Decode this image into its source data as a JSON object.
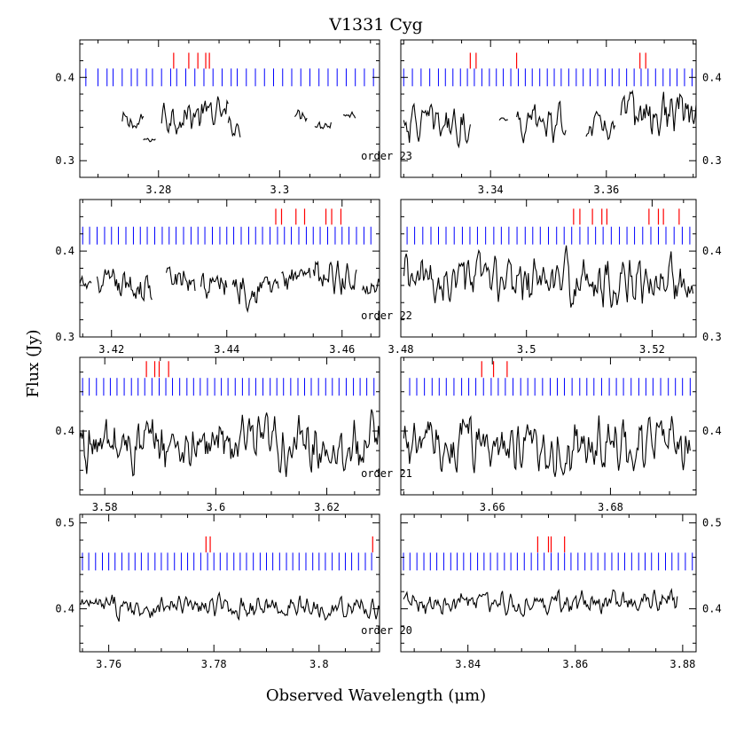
{
  "chart_data": {
    "type": "line",
    "title": "V1331 Cyg",
    "xlabel": "Observed Wavelength (μm)",
    "ylabel": "Flux (Jy)",
    "grid": false,
    "colors": {
      "spectrum": "#000000",
      "blue_marks": "#0000ff",
      "red_marks": "#ff0000"
    },
    "orders": [
      {
        "label": "order 23",
        "ylim": [
          0.28,
          0.445
        ],
        "yticks": [
          0.3,
          0.4
        ],
        "tick_labels_y": [
          "0.3",
          "0.4"
        ],
        "blue_y": 0.4,
        "red_y": 0.42,
        "panels": [
          {
            "xlim": [
              3.267,
              3.3165
            ],
            "xticks": [
              3.28,
              3.3
            ],
            "tick_labels_x": [
              "3.28",
              "3.3"
            ],
            "blue_marks": [
              3.268,
              3.27,
              3.2715,
              3.2725,
              3.274,
              3.2755,
              3.2765,
              3.278,
              3.279,
              3.2805,
              3.282,
              3.283,
              3.2845,
              3.286,
              3.2875,
              3.289,
              3.2905,
              3.292,
              3.293,
              3.2945,
              3.296,
              3.2975,
              3.299,
              3.3005,
              3.302,
              3.3035,
              3.305,
              3.3065,
              3.308,
              3.3095,
              3.311,
              3.3125,
              3.314,
              3.3155
            ],
            "red_marks": [
              3.2825,
              3.285,
              3.2865,
              3.2878,
              3.2884
            ],
            "segments": [
              {
                "x0": 3.274,
                "x1": 3.2775,
                "base": 0.345,
                "amp": 0.012
              },
              {
                "x0": 3.2775,
                "x1": 3.2795,
                "base": 0.325,
                "amp": 0.003
              },
              {
                "x0": 3.2805,
                "x1": 3.2915,
                "base": 0.355,
                "amp": 0.02
              },
              {
                "x0": 3.2915,
                "x1": 3.2935,
                "base": 0.34,
                "amp": 0.01
              },
              {
                "x0": 3.3025,
                "x1": 3.3045,
                "base": 0.355,
                "amp": 0.008
              },
              {
                "x0": 3.3058,
                "x1": 3.3085,
                "base": 0.345,
                "amp": 0.008
              },
              {
                "x0": 3.3105,
                "x1": 3.3125,
                "base": 0.355,
                "amp": 0.004
              }
            ]
          },
          {
            "xlim": [
              3.3245,
              3.3755
            ],
            "xticks": [
              3.34,
              3.36
            ],
            "tick_labels_x": [
              "3.34",
              "3.36"
            ],
            "blue_marks": [
              3.325,
              3.3265,
              3.328,
              3.3295,
              3.331,
              3.3322,
              3.3335,
              3.3348,
              3.336,
              3.3372,
              3.3385,
              3.3398,
              3.341,
              3.3422,
              3.3435,
              3.3448,
              3.346,
              3.3472,
              3.3485,
              3.3498,
              3.351,
              3.3522,
              3.3535,
              3.3548,
              3.356,
              3.3572,
              3.3585,
              3.3598,
              3.361,
              3.3622,
              3.3635,
              3.3648,
              3.366,
              3.3672,
              3.3685,
              3.3698,
              3.371,
              3.3722,
              3.3735,
              3.3748
            ],
            "red_marks": [
              3.3365,
              3.3375,
              3.3445,
              3.3658,
              3.3668
            ],
            "segments": [
              {
                "x0": 3.325,
                "x1": 3.3365,
                "base": 0.345,
                "amp": 0.02
              },
              {
                "x0": 3.3415,
                "x1": 3.343,
                "base": 0.35,
                "amp": 0.002
              },
              {
                "x0": 3.3445,
                "x1": 3.353,
                "base": 0.345,
                "amp": 0.02
              },
              {
                "x0": 3.3565,
                "x1": 3.3615,
                "base": 0.34,
                "amp": 0.016
              },
              {
                "x0": 3.3625,
                "x1": 3.3755,
                "base": 0.355,
                "amp": 0.024
              }
            ]
          }
        ]
      },
      {
        "label": "order 22",
        "ylim": [
          0.3,
          0.46
        ],
        "yticks": [
          0.3,
          0.4
        ],
        "tick_labels_y": [
          "0.3",
          "0.4"
        ],
        "blue_y": 0.418,
        "red_y": 0.44,
        "panels": [
          {
            "xlim": [
              3.4145,
              3.4665
            ],
            "xticks": [
              3.42,
              3.44,
              3.46
            ],
            "tick_labels_x": [
              "3.42",
              "3.44",
              "3.46"
            ],
            "blue_marks": [
              3.415,
              3.4162,
              3.4175,
              3.4188,
              3.42,
              3.4212,
              3.4225,
              3.4238,
              3.425,
              3.4262,
              3.4275,
              3.4288,
              3.43,
              3.4312,
              3.4325,
              3.4338,
              3.435,
              3.4362,
              3.4375,
              3.4388,
              3.44,
              3.4412,
              3.4425,
              3.4438,
              3.445,
              3.4462,
              3.4475,
              3.4488,
              3.45,
              3.4512,
              3.4525,
              3.4538,
              3.455,
              3.4562,
              3.4575,
              3.4588,
              3.46,
              3.4612,
              3.4625,
              3.4638,
              3.465
            ],
            "red_marks": [
              3.4485,
              3.4495,
              3.452,
              3.4535,
              3.4572,
              3.4582,
              3.4598
            ],
            "segments": [
              {
                "x0": 3.4145,
                "x1": 3.4165,
                "base": 0.36,
                "amp": 0.008
              },
              {
                "x0": 3.4175,
                "x1": 3.427,
                "base": 0.358,
                "amp": 0.018
              },
              {
                "x0": 3.4295,
                "x1": 3.4345,
                "base": 0.365,
                "amp": 0.016
              },
              {
                "x0": 3.4355,
                "x1": 3.44,
                "base": 0.36,
                "amp": 0.018
              },
              {
                "x0": 3.441,
                "x1": 3.449,
                "base": 0.36,
                "amp": 0.02
              },
              {
                "x0": 3.4495,
                "x1": 3.4545,
                "base": 0.365,
                "amp": 0.016
              },
              {
                "x0": 3.455,
                "x1": 3.4625,
                "base": 0.37,
                "amp": 0.022
              },
              {
                "x0": 3.4635,
                "x1": 3.4665,
                "base": 0.36,
                "amp": 0.01
              }
            ]
          },
          {
            "xlim": [
              3.48,
              3.527
            ],
            "xticks": [
              3.48,
              3.5,
              3.52
            ],
            "tick_labels_x": [
              "3.48",
              "3.5",
              "3.52"
            ],
            "blue_marks": [
              3.481,
              3.4822,
              3.4835,
              3.4848,
              3.486,
              3.4872,
              3.4885,
              3.4898,
              3.491,
              3.4922,
              3.4935,
              3.4948,
              3.496,
              3.4972,
              3.4985,
              3.4998,
              3.501,
              3.5022,
              3.5035,
              3.5048,
              3.506,
              3.5072,
              3.5085,
              3.5098,
              3.511,
              3.5122,
              3.5135,
              3.5148,
              3.516,
              3.5172,
              3.5185,
              3.5198,
              3.521,
              3.5222,
              3.5235,
              3.5248,
              3.526
            ],
            "red_marks": [
              3.5075,
              3.5085,
              3.5105,
              3.512,
              3.5128,
              3.5195,
              3.521,
              3.5218,
              3.5243
            ],
            "segments": [
              {
                "x0": 3.4805,
                "x1": 3.5265,
                "base": 0.365,
                "amp": 0.025
              }
            ]
          }
        ]
      },
      {
        "label": "order 21",
        "ylim": [
          0.335,
          0.475
        ],
        "yticks": [
          0.4
        ],
        "tick_labels_y": [
          "0.4"
        ],
        "blue_y": 0.445,
        "red_y": 0.463,
        "panels": [
          {
            "xlim": [
              3.5755,
              3.6295
            ],
            "xticks": [
              3.58,
              3.6,
              3.62
            ],
            "tick_labels_x": [
              "3.58",
              "3.6",
              "3.62"
            ],
            "blue_marks": [
              3.576,
              3.5772,
              3.5785,
              3.5798,
              3.581,
              3.5822,
              3.5835,
              3.5848,
              3.586,
              3.5872,
              3.5885,
              3.5898,
              3.591,
              3.5922,
              3.5935,
              3.5948,
              3.596,
              3.5972,
              3.5985,
              3.5998,
              3.601,
              3.6022,
              3.6035,
              3.6048,
              3.606,
              3.6072,
              3.6085,
              3.6098,
              3.611,
              3.6122,
              3.6135,
              3.6148,
              3.616,
              3.6172,
              3.6185,
              3.6198,
              3.621,
              3.6222,
              3.6235,
              3.6248,
              3.626,
              3.6272,
              3.6285
            ],
            "red_marks": [
              3.5875,
              3.589,
              3.5898,
              3.5915
            ],
            "segments": [
              {
                "x0": 3.5755,
                "x1": 3.6295,
                "base": 0.385,
                "amp": 0.025
              }
            ]
          },
          {
            "xlim": [
              3.6445,
              3.6945
            ],
            "xticks": [
              3.66,
              3.68
            ],
            "tick_labels_x": [
              "3.66",
              "3.68"
            ],
            "blue_marks": [
              3.646,
              3.6472,
              3.6485,
              3.6498,
              3.651,
              3.6522,
              3.6535,
              3.6548,
              3.656,
              3.6572,
              3.6585,
              3.6598,
              3.661,
              3.6622,
              3.6635,
              3.6648,
              3.666,
              3.6672,
              3.6685,
              3.6698,
              3.671,
              3.6722,
              3.6735,
              3.6748,
              3.676,
              3.6772,
              3.6785,
              3.6798,
              3.681,
              3.6822,
              3.6835,
              3.6848,
              3.686,
              3.6872,
              3.6885,
              3.6898,
              3.691,
              3.6922,
              3.6935
            ],
            "red_marks": [
              3.6582,
              3.6602,
              3.6625
            ],
            "segments": [
              {
                "x0": 3.645,
                "x1": 3.6935,
                "base": 0.385,
                "amp": 0.025
              }
            ]
          }
        ]
      },
      {
        "label": "order 20",
        "ylim": [
          0.35,
          0.51
        ],
        "yticks": [
          0.4,
          0.5
        ],
        "tick_labels_y": [
          "0.4",
          "0.5"
        ],
        "blue_y": 0.455,
        "red_y": 0.475,
        "panels": [
          {
            "xlim": [
              3.7545,
              3.8115
            ],
            "xticks": [
              3.76,
              3.78,
              3.8
            ],
            "tick_labels_x": [
              "3.76",
              "3.78",
              "3.8"
            ],
            "blue_marks": [
              3.755,
              3.7562,
              3.7575,
              3.7588,
              3.76,
              3.7612,
              3.7625,
              3.7638,
              3.765,
              3.7662,
              3.7675,
              3.7688,
              3.77,
              3.7712,
              3.7725,
              3.7738,
              3.775,
              3.7762,
              3.7775,
              3.7788,
              3.78,
              3.7812,
              3.7825,
              3.7838,
              3.785,
              3.7862,
              3.7875,
              3.7888,
              3.79,
              3.7912,
              3.7925,
              3.7938,
              3.795,
              3.7962,
              3.7975,
              3.7988,
              3.8,
              3.8012,
              3.8025,
              3.8038,
              3.805,
              3.8062,
              3.8075,
              3.8088,
              3.81
            ],
            "red_marks": [
              3.7785,
              3.7793,
              3.8102
            ],
            "segments": [
              {
                "x0": 3.7545,
                "x1": 3.8115,
                "base": 0.402,
                "amp": 0.012
              }
            ]
          },
          {
            "xlim": [
              3.8275,
              3.8825
            ],
            "xticks": [
              3.84,
              3.86,
              3.88
            ],
            "tick_labels_x": [
              "3.84",
              "3.86",
              "3.88"
            ],
            "blue_marks": [
              3.828,
              3.8292,
              3.8305,
              3.8318,
              3.833,
              3.8342,
              3.8355,
              3.8368,
              3.838,
              3.8392,
              3.8405,
              3.8418,
              3.843,
              3.8442,
              3.8455,
              3.8468,
              3.848,
              3.8492,
              3.8505,
              3.8518,
              3.853,
              3.8542,
              3.8555,
              3.8568,
              3.858,
              3.8592,
              3.8605,
              3.8618,
              3.863,
              3.8642,
              3.8655,
              3.8668,
              3.868,
              3.8692,
              3.8705,
              3.8718,
              3.873,
              3.8742,
              3.8755,
              3.8768,
              3.878,
              3.8792,
              3.8805,
              3.8818
            ],
            "red_marks": [
              3.853,
              3.855,
              3.8555,
              3.858
            ],
            "segments": [
              {
                "x0": 3.828,
                "x1": 3.879,
                "base": 0.407,
                "amp": 0.012
              }
            ]
          }
        ]
      }
    ]
  }
}
